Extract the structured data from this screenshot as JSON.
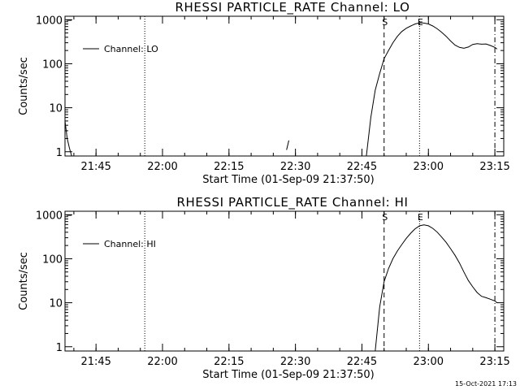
{
  "footer": {
    "timestamp": "15-Oct-2021 17:13"
  },
  "style": {
    "background": "#ffffff",
    "foreground": "#000000"
  },
  "chart_data": [
    {
      "type": "line",
      "title": "RHESSI PARTICLE_RATE Channel: LO",
      "xlabel": "Start Time (01-Sep-09 21:37:50)",
      "ylabel": "Counts/sec",
      "y_scale": "log",
      "ylim": [
        0.8,
        1200
      ],
      "y_ticks": [
        {
          "v": 1,
          "label": "1"
        },
        {
          "v": 10,
          "label": "10"
        },
        {
          "v": 100,
          "label": "100"
        },
        {
          "v": 1000,
          "label": "1000"
        }
      ],
      "xlim": [
        "21:38",
        "23:17"
      ],
      "x_ticks": [
        "21:45",
        "22:00",
        "22:15",
        "22:30",
        "22:45",
        "23:00",
        "23:15"
      ],
      "x_minor_minutes": 5,
      "legend": {
        "position": "top-left",
        "entries": [
          "Channel: LO"
        ]
      },
      "markers": [
        {
          "time": "21:56",
          "style": "dotted",
          "label": ""
        },
        {
          "time": "22:50",
          "style": "dashed",
          "label": "S"
        },
        {
          "time": "22:58",
          "style": "dotted",
          "label": "E"
        },
        {
          "time": "23:15",
          "style": "dash-dot",
          "label": ""
        }
      ],
      "series": [
        {
          "name": "Channel: LO",
          "segments": [
            [
              [
                "21:38",
                5
              ],
              [
                "21:38:30",
                2
              ],
              [
                "21:39",
                1.2
              ],
              [
                "21:39:30",
                0.8
              ]
            ],
            [
              [
                "22:28",
                1.1
              ],
              [
                "22:28:30",
                1.8
              ]
            ],
            [
              [
                "22:46",
                0.8
              ],
              [
                "22:47",
                6
              ],
              [
                "22:48",
                25
              ],
              [
                "22:49",
                60
              ],
              [
                "22:50",
                130
              ],
              [
                "22:51",
                200
              ],
              [
                "22:52",
                300
              ],
              [
                "22:53",
                420
              ],
              [
                "22:54",
                540
              ],
              [
                "22:55",
                640
              ],
              [
                "22:56",
                720
              ],
              [
                "22:57",
                800
              ],
              [
                "22:58",
                850
              ],
              [
                "22:59",
                840
              ],
              [
                "23:00",
                800
              ],
              [
                "23:01",
                720
              ],
              [
                "23:02",
                620
              ],
              [
                "23:03",
                520
              ],
              [
                "23:04",
                420
              ],
              [
                "23:05",
                330
              ],
              [
                "23:06",
                265
              ],
              [
                "23:07",
                235
              ],
              [
                "23:08",
                225
              ],
              [
                "23:09",
                240
              ],
              [
                "23:10",
                275
              ],
              [
                "23:11",
                285
              ],
              [
                "23:12",
                278
              ],
              [
                "23:13",
                282
              ],
              [
                "23:14",
                260
              ],
              [
                "23:15",
                235
              ],
              [
                "23:15:30",
                215
              ]
            ]
          ]
        }
      ]
    },
    {
      "type": "line",
      "title": "RHESSI PARTICLE_RATE Channel: HI",
      "xlabel": "Start Time (01-Sep-09 21:37:50)",
      "ylabel": "Counts/sec",
      "y_scale": "log",
      "ylim": [
        0.8,
        1200
      ],
      "y_ticks": [
        {
          "v": 1,
          "label": "1"
        },
        {
          "v": 10,
          "label": "10"
        },
        {
          "v": 100,
          "label": "100"
        },
        {
          "v": 1000,
          "label": "1000"
        }
      ],
      "xlim": [
        "21:38",
        "23:17"
      ],
      "x_ticks": [
        "21:45",
        "22:00",
        "22:15",
        "22:30",
        "22:45",
        "23:00",
        "23:15"
      ],
      "x_minor_minutes": 5,
      "legend": {
        "position": "top-left",
        "entries": [
          "Channel: HI"
        ]
      },
      "markers": [
        {
          "time": "21:56",
          "style": "dotted",
          "label": ""
        },
        {
          "time": "22:50",
          "style": "dashed",
          "label": "S"
        },
        {
          "time": "22:58",
          "style": "dotted",
          "label": "E"
        },
        {
          "time": "23:15",
          "style": "dash-dot",
          "label": ""
        }
      ],
      "series": [
        {
          "name": "Channel: HI",
          "segments": [
            [
              [
                "22:48",
                0.8
              ],
              [
                "22:49",
                8
              ],
              [
                "22:50",
                30
              ],
              [
                "22:51",
                60
              ],
              [
                "22:52",
                100
              ],
              [
                "22:53",
                150
              ],
              [
                "22:54",
                210
              ],
              [
                "22:55",
                290
              ],
              [
                "22:56",
                380
              ],
              [
                "22:57",
                480
              ],
              [
                "22:58",
                560
              ],
              [
                "22:59",
                590
              ],
              [
                "23:00",
                560
              ],
              [
                "23:01",
                490
              ],
              [
                "23:02",
                400
              ],
              [
                "23:03",
                310
              ],
              [
                "23:04",
                235
              ],
              [
                "23:05",
                170
              ],
              [
                "23:06",
                120
              ],
              [
                "23:07",
                80
              ],
              [
                "23:08",
                50
              ],
              [
                "23:09",
                32
              ],
              [
                "23:10",
                23
              ],
              [
                "23:11",
                17
              ],
              [
                "23:12",
                14
              ],
              [
                "23:13",
                13
              ],
              [
                "23:14",
                12
              ],
              [
                "23:15",
                11
              ],
              [
                "23:15:30",
                10
              ]
            ]
          ]
        }
      ]
    }
  ]
}
